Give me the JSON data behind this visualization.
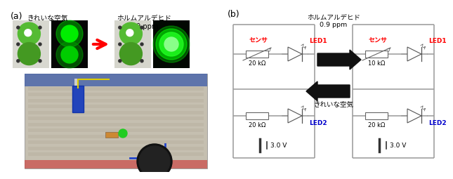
{
  "label_a": "(a)",
  "label_b": "(b)",
  "clean_air_label": "きれいな空気",
  "formaldehyde_label": "ホルムアルデヒド\n0.9 ppm",
  "clean_air_label_center": "きれいな空気",
  "formaldehyde_label_center": "ホルムアルデヒド\n0.9 ppm",
  "sensor_label_left": "センサ",
  "led1_label_left": "LED1",
  "led2_label_left": "LED2",
  "sensor_label_right": "センサ",
  "led1_label_right": "LED1",
  "led2_label_right": "LED2",
  "res1_left": "20 kΩ",
  "res2_left": "20 kΩ",
  "res1_right": "10 kΩ",
  "res2_right": "20 kΩ",
  "voltage_left": "3.0 V",
  "voltage_right": "3.0 V",
  "bg_color": "#ffffff",
  "wire_color": "#999999",
  "led_color": "#666666",
  "sensor_text_color": "#ff0000",
  "led1_text_color": "#ff0000",
  "led2_text_color": "#0000cc"
}
